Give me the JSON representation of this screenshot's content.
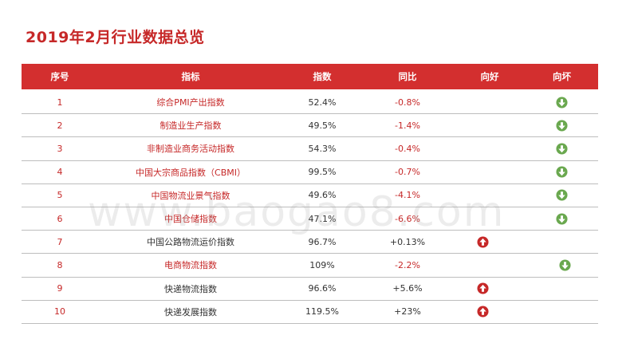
{
  "title": "2019年2月行业数据总览",
  "watermark": "www.baogao8.com",
  "colors": {
    "accent": "#d32f2f",
    "up": "#c62828",
    "down": "#6aa84f"
  },
  "table": {
    "headers": [
      "序号",
      "指标",
      "指数",
      "同比",
      "向好",
      "向坏"
    ],
    "rows": [
      {
        "no": "1",
        "name": "综合PMI产出指数",
        "index": "52.4%",
        "yoy": "-0.8%",
        "trend": "down",
        "name_color": "red",
        "yoy_color": "red"
      },
      {
        "no": "2",
        "name": "制造业生产指数",
        "index": "49.5%",
        "yoy": "-1.4%",
        "trend": "down",
        "name_color": "red",
        "yoy_color": "red"
      },
      {
        "no": "3",
        "name": "非制造业商务活动指数",
        "index": "54.3%",
        "yoy": "-0.4%",
        "trend": "down",
        "name_color": "red",
        "yoy_color": "red"
      },
      {
        "no": "4",
        "name": "中国大宗商品指数（CBMI）",
        "index": "99.5%",
        "yoy": "-0.7%",
        "trend": "down",
        "name_color": "red",
        "yoy_color": "red"
      },
      {
        "no": "5",
        "name": "中国物流业景气指数",
        "index": "49.6%",
        "yoy": "-4.1%",
        "trend": "down",
        "name_color": "red",
        "yoy_color": "red"
      },
      {
        "no": "6",
        "name": "中国仓储指数",
        "index": "47.1%",
        "yoy": "-6.6%",
        "trend": "down",
        "name_color": "red",
        "yoy_color": "red"
      },
      {
        "no": "7",
        "name": "中国公路物流运价指数",
        "index": "96.7%",
        "yoy": "+0.13%",
        "trend": "up",
        "name_color": "dark",
        "yoy_color": "dark"
      },
      {
        "no": "8",
        "name": "电商物流指数",
        "index": "109%",
        "yoy": "-2.2%",
        "trend": "down",
        "name_color": "red",
        "yoy_color": "red"
      },
      {
        "no": "9",
        "name": "快递物流指数",
        "index": "96.6%",
        "yoy": "+5.6%",
        "trend": "up",
        "name_color": "dark",
        "yoy_color": "dark"
      },
      {
        "no": "10",
        "name": "快递发展指数",
        "index": "119.5%",
        "yoy": "+23%",
        "trend": "up",
        "name_color": "dark",
        "yoy_color": "dark"
      }
    ]
  }
}
